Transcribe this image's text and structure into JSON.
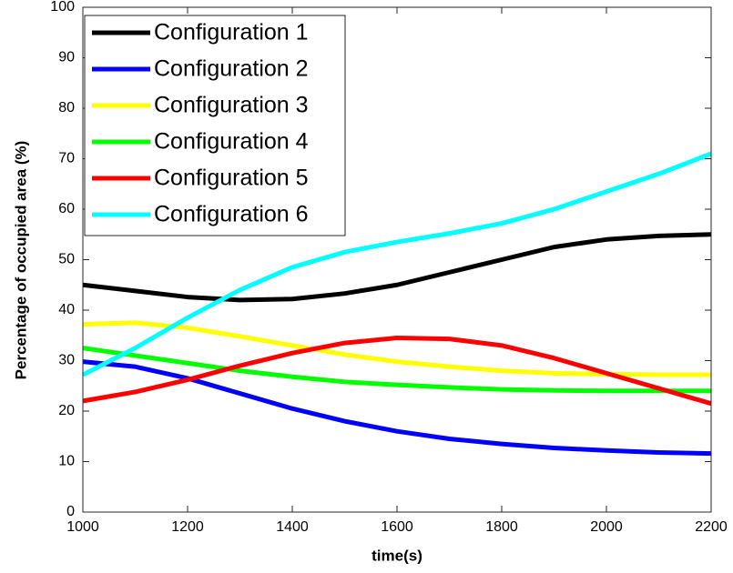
{
  "chart_data": {
    "type": "line",
    "x_label": "time(s)",
    "y_label": "Percentage of occupied area (%)",
    "x": [
      1000,
      1100,
      1200,
      1300,
      1400,
      1500,
      1600,
      1700,
      1800,
      1900,
      2000,
      2100,
      2200
    ],
    "series": [
      {
        "name": "Configuration 1",
        "color": "#000000",
        "values": [
          45.0,
          43.8,
          42.6,
          42.0,
          42.2,
          43.3,
          45.0,
          47.5,
          50.0,
          52.5,
          54.0,
          54.7,
          55.0
        ]
      },
      {
        "name": "Configuration 2",
        "color": "#0000ff",
        "values": [
          29.8,
          28.8,
          26.5,
          23.5,
          20.5,
          18.0,
          16.0,
          14.5,
          13.5,
          12.7,
          12.2,
          11.8,
          11.6
        ]
      },
      {
        "name": "Configuration 3",
        "color": "#ffff00",
        "values": [
          37.2,
          37.5,
          36.5,
          34.8,
          33.0,
          31.2,
          29.8,
          28.8,
          28.0,
          27.5,
          27.3,
          27.2,
          27.2
        ]
      },
      {
        "name": "Configuration 4",
        "color": "#00ff00",
        "values": [
          32.5,
          31.0,
          29.5,
          28.0,
          26.8,
          25.8,
          25.2,
          24.7,
          24.3,
          24.1,
          24.0,
          24.0,
          24.0
        ]
      },
      {
        "name": "Configuration 5",
        "color": "#ff0000",
        "values": [
          22.0,
          23.8,
          26.2,
          29.0,
          31.5,
          33.5,
          34.5,
          34.3,
          33.0,
          30.5,
          27.5,
          24.5,
          21.5
        ]
      },
      {
        "name": "Configuration 6",
        "color": "#00ffff",
        "values": [
          27.2,
          32.5,
          38.5,
          44.0,
          48.5,
          51.5,
          53.5,
          55.2,
          57.2,
          60.0,
          63.5,
          67.0,
          71.0
        ]
      }
    ],
    "xlim": [
      1000,
      2200
    ],
    "xticks": [
      1000,
      1200,
      1400,
      1600,
      1800,
      2000,
      2200
    ],
    "ylim": [
      0,
      100
    ],
    "yticks": [
      0,
      10,
      20,
      30,
      40,
      50,
      60,
      70,
      80,
      90,
      100
    ],
    "grid": false,
    "legend_position": "northwest"
  }
}
